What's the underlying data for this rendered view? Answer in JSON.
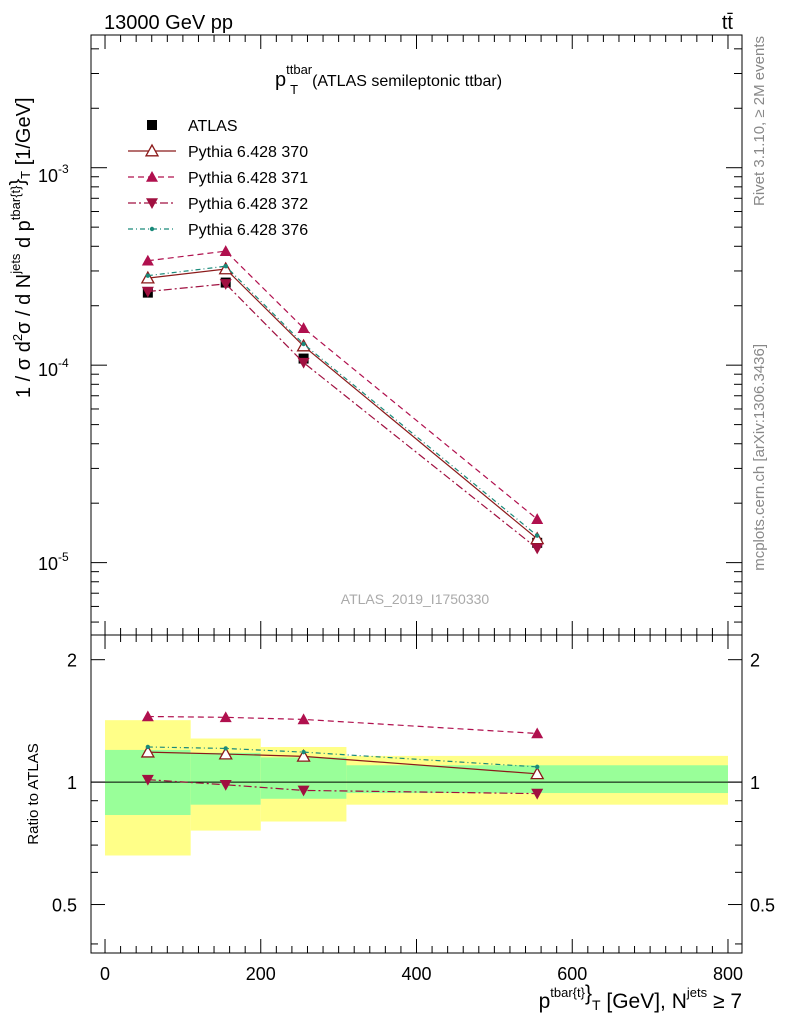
{
  "header": {
    "energy": "13000 GeV pp",
    "process": "tt̄"
  },
  "side": {
    "rivet": "Rivet 3.1.10, ≥ 2M events",
    "mcplots": "mcplots.cern.ch [arXiv:1306.3436]"
  },
  "chart_data": {
    "type": "line",
    "title_main": "p",
    "title_sup": "ttbar",
    "title_sub": "T",
    "title_rest": "(ATLAS semileptonic ttbar)",
    "analysis": "ATLAS_2019_I1750330",
    "ylabel": "1 / σ d²σ / d N^jets d p^tbar{t}_T [1/GeV]",
    "ratio_ylabel": "Ratio to ATLAS",
    "xlabel": "p^tbar{t}_T [GeV], N^jets ≥ 7",
    "xlim": [
      -18,
      818
    ],
    "ylim": [
      4.3e-06,
      0.0047
    ],
    "ylog": true,
    "ratio_ylim": [
      0.38,
      2.3
    ],
    "ratio_ylog": true,
    "x_ticks": [
      "0",
      "200",
      "400",
      "600",
      "800"
    ],
    "y_ticks": [
      "10^-5",
      "10^-4",
      "10^-3"
    ],
    "ratio_ticks": [
      "0.5",
      "1",
      "2"
    ],
    "ratio_ticks_right": [
      "0.5",
      "1",
      "2"
    ],
    "x": [
      55,
      155,
      255,
      555
    ],
    "bins": [
      [
        0,
        110
      ],
      [
        110,
        200
      ],
      [
        200,
        310
      ],
      [
        310,
        800
      ]
    ],
    "series": [
      {
        "name": "ATLAS",
        "color": "#000000",
        "marker": "square",
        "values": [
          0.000233,
          0.000262,
          0.000108,
          1.26e-05
        ]
      },
      {
        "name": "Pythia 6.428 370",
        "color": "#8b1a1a",
        "marker": "triangle-up-open",
        "dash": "none",
        "values": [
          0.000276,
          0.000307,
          0.000125,
          1.32e-05
        ]
      },
      {
        "name": "Pythia 6.428 371",
        "color": "#b0104e",
        "marker": "triangle-up",
        "dash": "6,4",
        "values": [
          0.000338,
          0.000378,
          0.000154,
          1.66e-05
        ]
      },
      {
        "name": "Pythia 6.428 372",
        "color": "#a01040",
        "marker": "triangle-down",
        "dash": "8,3,2,3",
        "values": [
          0.000236,
          0.000258,
          0.000103,
          1.18e-05
        ]
      },
      {
        "name": "Pythia 6.428 376",
        "color": "#1a8a7a",
        "marker": "dot",
        "dash": "5,3,1,3",
        "values": [
          0.000284,
          0.000317,
          0.000128,
          1.37e-05
        ]
      }
    ],
    "ratios": [
      [
        1.0,
        1.0,
        1.0,
        1.0
      ],
      [
        1.185,
        1.172,
        1.157,
        1.048
      ],
      [
        1.45,
        1.443,
        1.426,
        1.317
      ],
      [
        1.014,
        0.985,
        0.954,
        0.937
      ],
      [
        1.22,
        1.21,
        1.185,
        1.09
      ]
    ],
    "band_inner": [
      [
        0.83,
        1.2
      ],
      [
        0.88,
        1.18
      ],
      [
        0.91,
        1.15
      ],
      [
        0.94,
        1.1
      ]
    ],
    "band_outer": [
      [
        0.66,
        1.42
      ],
      [
        0.76,
        1.28
      ],
      [
        0.8,
        1.22
      ],
      [
        0.88,
        1.16
      ]
    ],
    "legend_position": "top-left"
  }
}
